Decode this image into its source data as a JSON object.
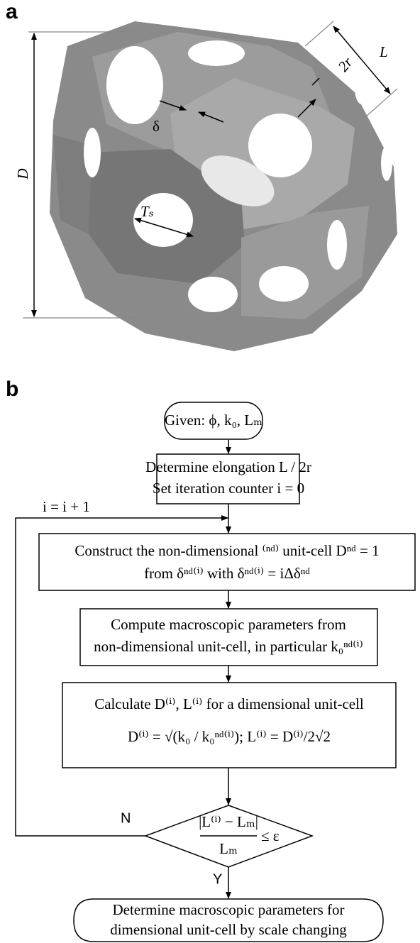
{
  "panel_a": {
    "label": "a",
    "dimensions": {
      "D": "D",
      "L": "L",
      "two_r": "2r",
      "delta": "δ",
      "T_s": "Tₛ"
    }
  },
  "panel_b": {
    "label": "b",
    "nodes": [
      {
        "lines": [
          "Given: ϕ, k₀, Lₘ"
        ]
      },
      {
        "lines": [
          "Determine elongation L / 2r",
          "Set iteration counter i = 0"
        ]
      },
      {
        "lines": [
          "Construct the non-dimensional ⁽ⁿᵈ⁾ unit-cell Dⁿᵈ = 1",
          "from δⁿᵈ⁽ⁱ⁾ with δⁿᵈ⁽ⁱ⁾ = iΔδⁿᵈ"
        ]
      },
      {
        "lines": [
          "Compute macroscopic parameters from",
          "non-dimensional unit-cell, in particular k₀ⁿᵈ⁽ⁱ⁾"
        ]
      },
      {
        "lines": [
          "Calculate D⁽ⁱ⁾, L⁽ⁱ⁾ for a dimensional unit-cell",
          "D⁽ⁱ⁾ = √(k₀ / k₀ⁿᵈ⁽ⁱ⁾); L⁽ⁱ⁾ = D⁽ⁱ⁾/2√2"
        ]
      },
      {
        "numerator": "|L⁽ⁱ⁾ − Lₘ|",
        "denominator": "Lₘ",
        "relation": "≤ ε"
      },
      {
        "lines": [
          "Determine macroscopic parameters for",
          "dimensional unit-cell by scale changing"
        ]
      }
    ],
    "edges": {
      "loop": "i = i + 1",
      "no": "N",
      "yes": "Y"
    }
  }
}
